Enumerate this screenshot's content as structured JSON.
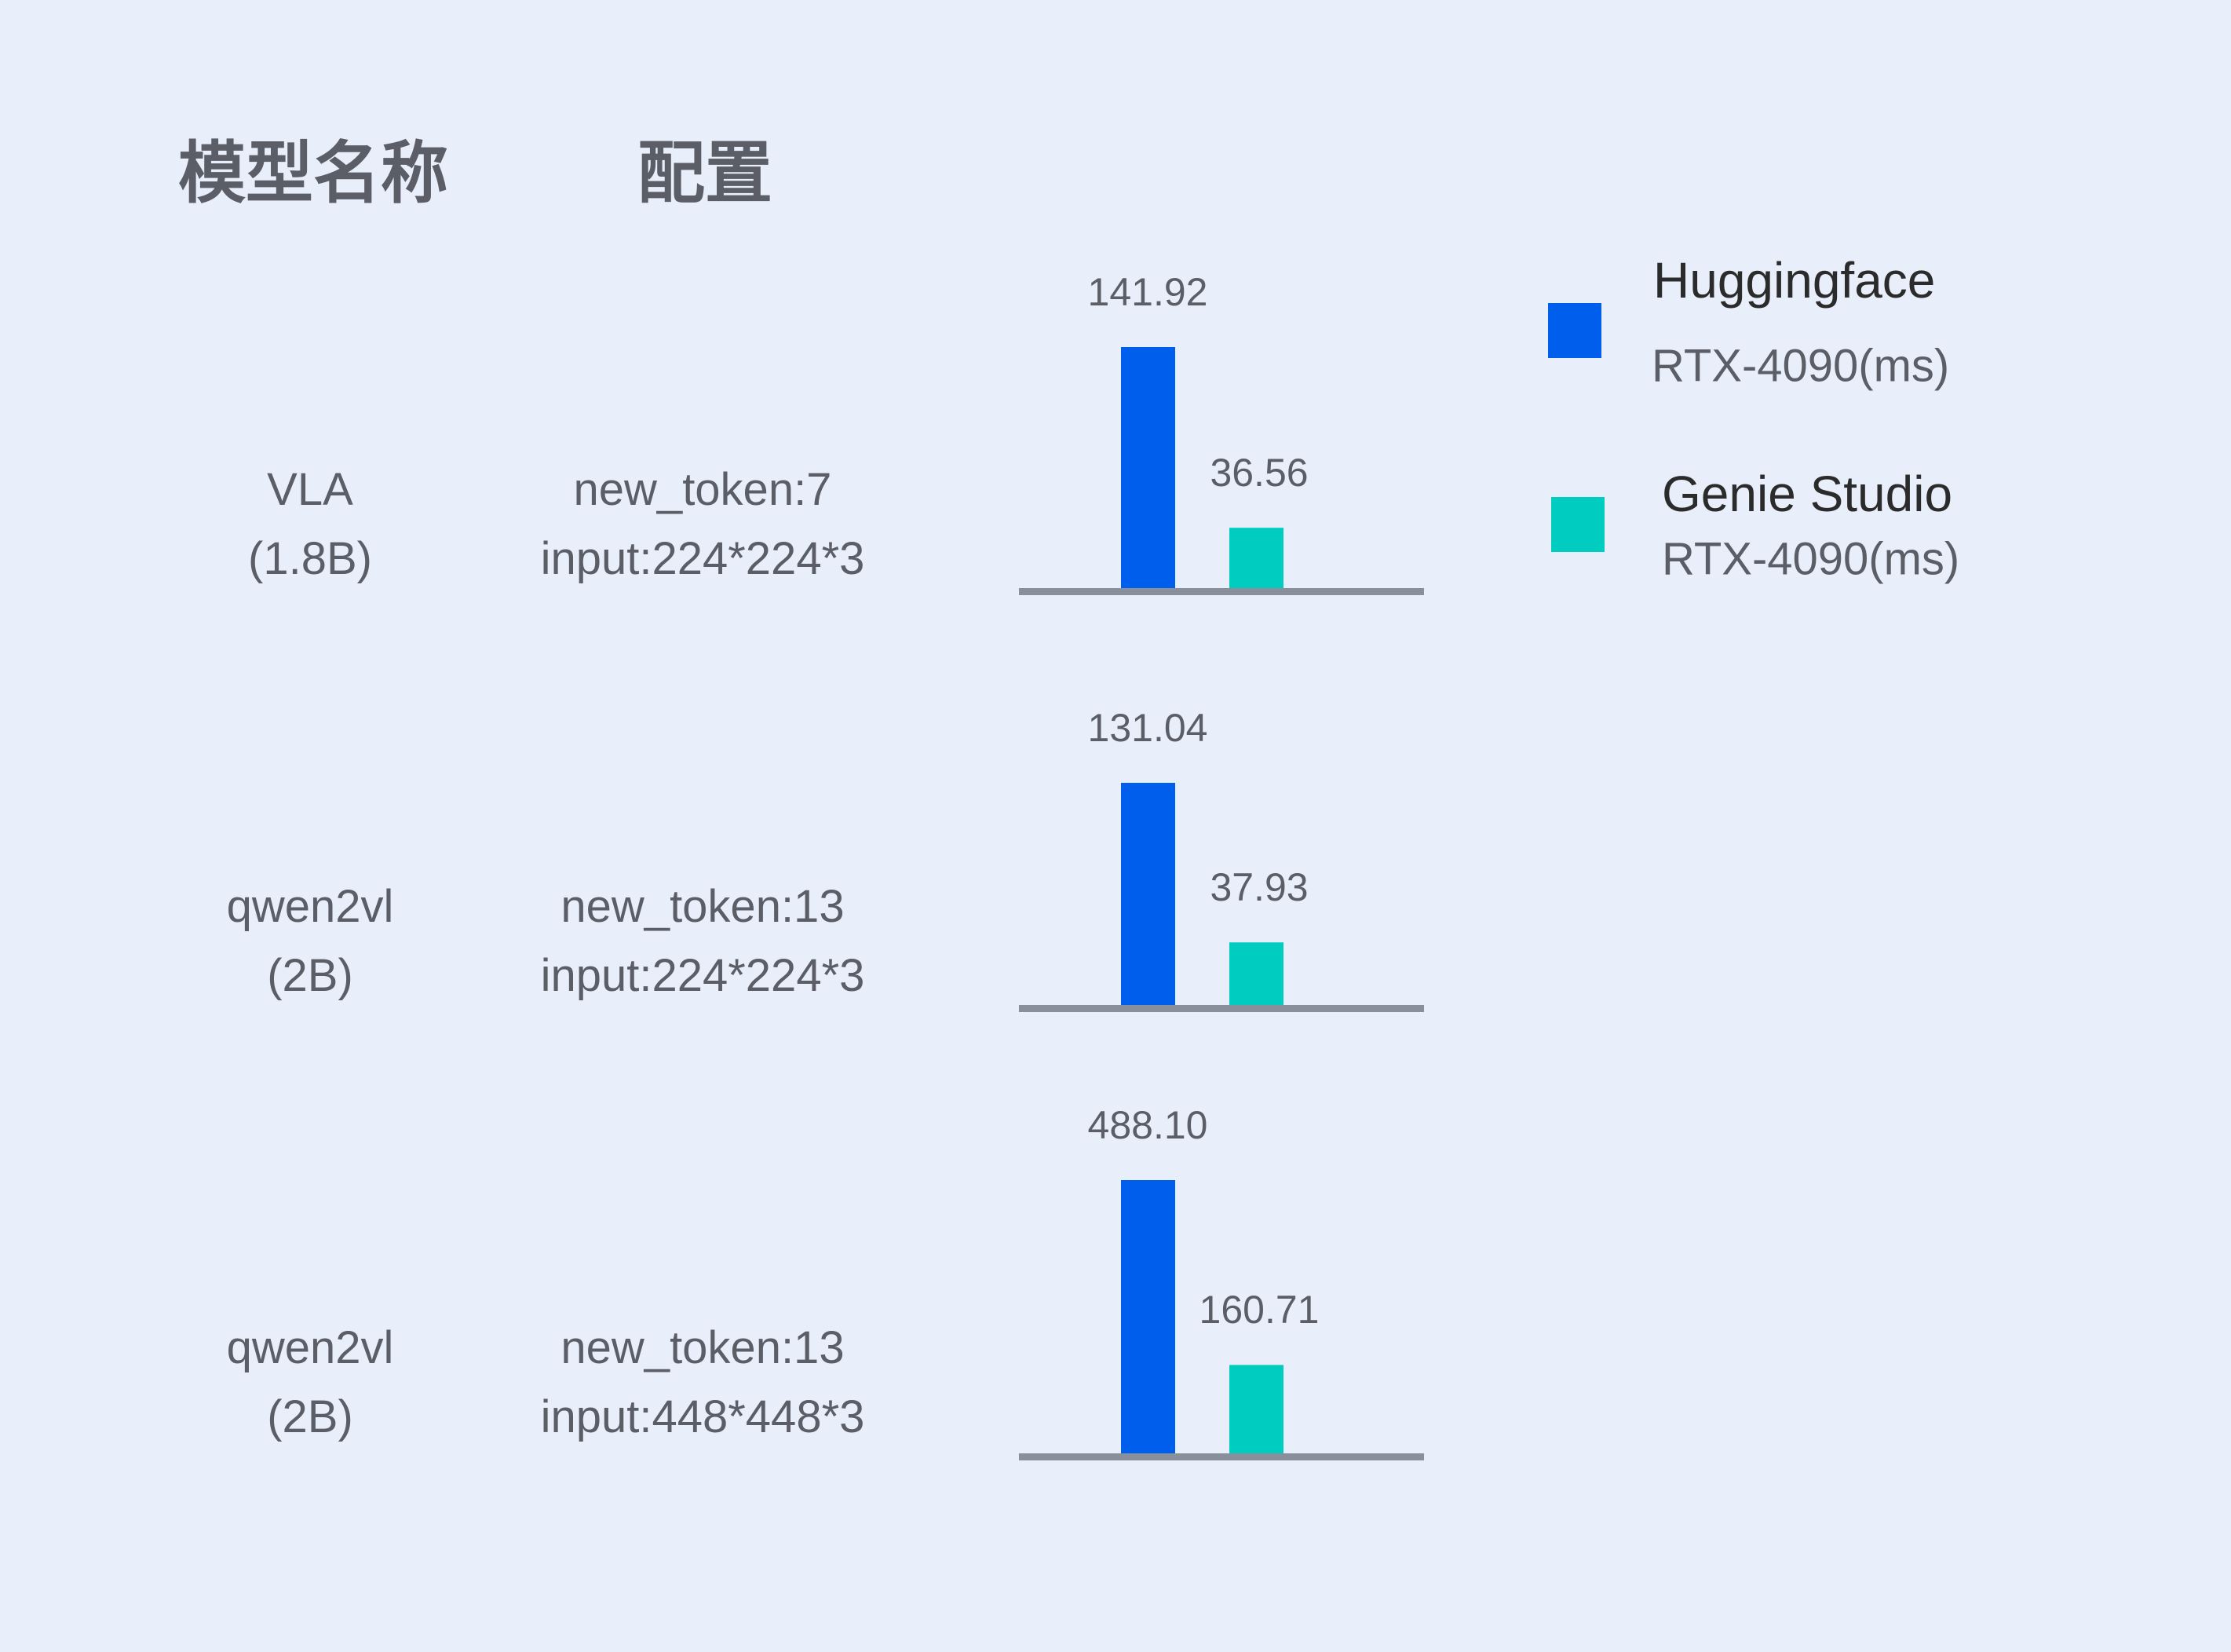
{
  "headers": {
    "model": "模型名称",
    "config": "配置"
  },
  "legend": [
    {
      "name": "Huggingface",
      "sub": "RTX-4090(ms)",
      "color": "#005eec"
    },
    {
      "name": "Genie Studio",
      "sub": "RTX-4090(ms)",
      "color": "#00ccc0"
    }
  ],
  "rows": [
    {
      "model": [
        "VLA",
        "(1.8B)"
      ],
      "config": [
        "new_token:7",
        "input:224*224*3"
      ],
      "labels": [
        "141.92",
        "36.56"
      ]
    },
    {
      "model": [
        "qwen2vl",
        "(2B)"
      ],
      "config": [
        "new_token:13",
        "input:224*224*3"
      ],
      "labels": [
        "131.04",
        "37.93"
      ]
    },
    {
      "model": [
        "qwen2vl",
        "(2B)"
      ],
      "config": [
        "new_token:13",
        "input:448*448*3"
      ],
      "labels": [
        "488.10",
        "160.71"
      ]
    }
  ],
  "chart_data": {
    "type": "bar",
    "categories": [
      "VLA (1.8B) new_token:7 input:224*224*3",
      "qwen2vl (2B) new_token:13 input:224*224*3",
      "qwen2vl (2B) new_token:13 input:448*448*3"
    ],
    "series": [
      {
        "name": "Huggingface RTX-4090(ms)",
        "values": [
          141.92,
          131.04,
          488.1
        ],
        "color": "#005eec"
      },
      {
        "name": "Genie Studio RTX-4090(ms)",
        "values": [
          36.56,
          37.93,
          160.71
        ],
        "color": "#00ccc0"
      }
    ],
    "axis_color": "#8a8f9c",
    "grid": false,
    "legend_position": "top-right",
    "independent_scale_per_category": true
  }
}
